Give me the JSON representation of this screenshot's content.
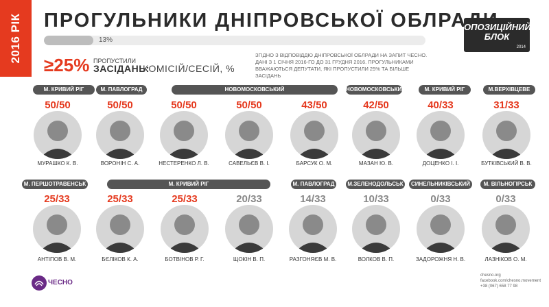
{
  "year_tab": "2016 РІК",
  "title": "ПРОГУЛЬНИКИ ДНІПРОВСЬКОЇ ОБЛРАДИ",
  "progress": {
    "label": "13%",
    "value": 0.13
  },
  "party_logo": {
    "line1": "ОПОЗИЦІЙНИЙ",
    "line2": "БЛОК",
    "year": "2014"
  },
  "threshold": {
    "value": "≥25%",
    "missed": "ПРОПУСТИЛИ",
    "sessions_label": "ЗАСІДАНЬ:",
    "sessions_type": "КОМІСІЙ/СЕСІЙ, %"
  },
  "info_note": "ЗГІДНО З ВІДПОВІДДЮ ДНІПРОВСЬКОЇ ОБЛРАДИ НА ЗАПИТ ЧЕСНО.\nДАНІ З 1 СІЧНЯ 2016-ГО ДО 31 ГРУДНЯ 2016. ПРОГУЛЬНИКАМИ\nВВАЖАЮТЬСЯ ДЕПУТАТИ, ЯКІ ПРОПУСТИЛИ 25% ТА БІЛЬШЕ ЗАСІДАНЬ",
  "row1_cities": [
    "М. КРИВИЙ РІГ",
    "М. ПАВЛОГРАД",
    "НОВОМОСКОВСЬКИЙ",
    "НОВОМОСКОВСЬКИЙ",
    "М. КРИВИЙ РІГ",
    "М.ВЕРХІВЦЕВЕ"
  ],
  "row2_cities": [
    "М. ПЕРШОТРАВЕНСЬК",
    "М. КРИВИЙ РІГ",
    "М. ПАВЛОГРАД",
    "М.ЗЕЛЕНОДОЛЬСЬК",
    "СИНЕЛЬНИКІВСЬКИЙ",
    "М. ВІЛЬНОГІРСЬК"
  ],
  "row1": [
    {
      "score": "50/50",
      "name": "МУРАШКО К. В."
    },
    {
      "score": "50/50",
      "name": "ВОРОНІН С. А."
    },
    {
      "score": "50/50",
      "name": "НЕСТЕРЕНКО Л. В."
    },
    {
      "score": "50/50",
      "name": "САВЕЛЬЄВ В. І."
    },
    {
      "score": "43/50",
      "name": "БАРСУК О. М."
    },
    {
      "score": "42/50",
      "name": "МАЗАН Ю. В."
    },
    {
      "score": "40/33",
      "name": "ДОЦЕНКО І. І."
    },
    {
      "score": "31/33",
      "name": "БУТКІВСЬКИЙ В. В."
    }
  ],
  "row2": [
    {
      "score": "25/33",
      "name": "АНТІПОВ В. М."
    },
    {
      "score": "25/33",
      "name": "БЄЛІКОВ К. А."
    },
    {
      "score": "25/33",
      "name": "БОТВІНОВ Р. Г."
    },
    {
      "score": "20/33",
      "name": "ЩОКІН В. П."
    },
    {
      "score": "14/33",
      "name": "РАЗГОНЯЄВ М. В."
    },
    {
      "score": "10/33",
      "name": "ВОЛКОВ В. П."
    },
    {
      "score": "0/33",
      "name": "ЗАДОРОЖНЯ Н. В."
    },
    {
      "score": "0/33",
      "name": "ЛАЗНІКОВ О. М."
    }
  ],
  "chesno": {
    "name": "ЧЕСНО",
    "icon": "chesno-logo-icon",
    "color": "#6a2a86"
  },
  "contacts": "chesno.org\nfacebook.com/chesno.movement\n+38 (067) 658 77 98",
  "colors": {
    "accent": "#e53a1f",
    "dark": "#2b2b2b",
    "pill": "#555555"
  }
}
